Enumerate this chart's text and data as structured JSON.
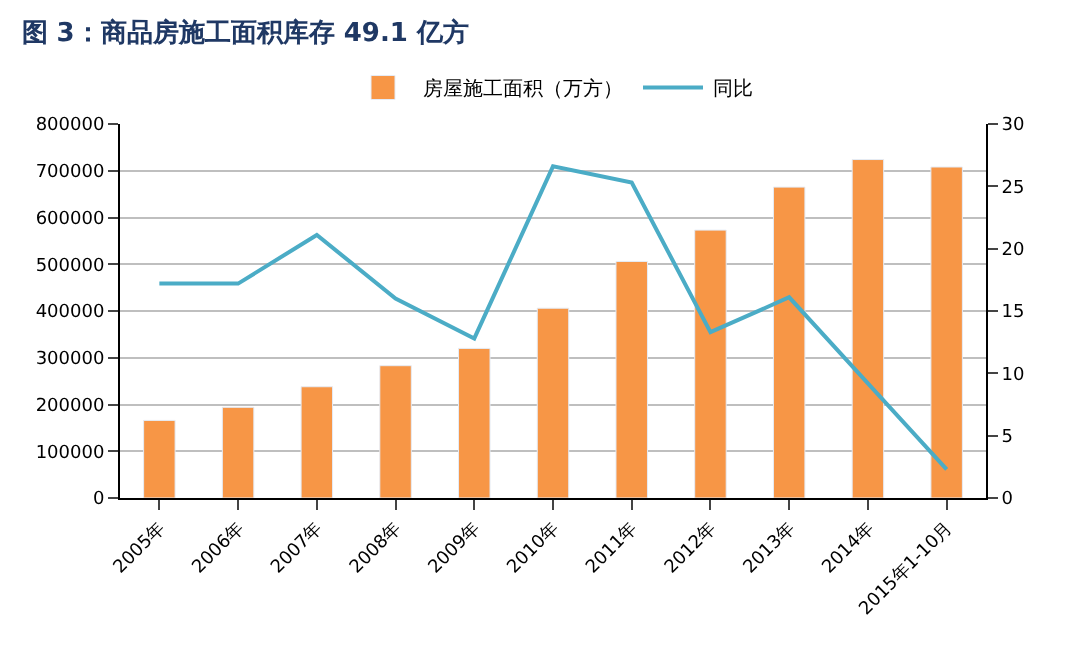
{
  "chart_data": {
    "type": "bar",
    "title": "图 3：商品房施工面积库存 49.1 亿方",
    "categories": [
      "2005年",
      "2006年",
      "2007年",
      "2008年",
      "2009年",
      "2010年",
      "2011年",
      "2012年",
      "2013年",
      "2014年",
      "2015年1-10月"
    ],
    "series": [
      {
        "name": "房屋施工面积（万方）",
        "color": "#f79646",
        "values": [
          166000,
          194000,
          238000,
          283000,
          320000,
          406000,
          506000,
          573000,
          665000,
          724000,
          708000
        ]
      },
      {
        "name": "同比",
        "type": "line",
        "axis": "y2",
        "color": "#4bacc6",
        "values": [
          17.2,
          17.2,
          21.1,
          16.0,
          12.8,
          26.6,
          25.3,
          13.3,
          16.1,
          9.2,
          2.3
        ]
      }
    ],
    "ylim": [
      0,
      800000
    ],
    "yticks": [
      0,
      100000,
      200000,
      300000,
      400000,
      500000,
      600000,
      700000,
      800000
    ],
    "y2lim": [
      0,
      30
    ],
    "y2ticks": [
      0,
      5,
      10,
      15,
      20,
      25,
      30
    ],
    "grid": "y",
    "legend": "top",
    "marker": "none",
    "line_style": "solid"
  }
}
